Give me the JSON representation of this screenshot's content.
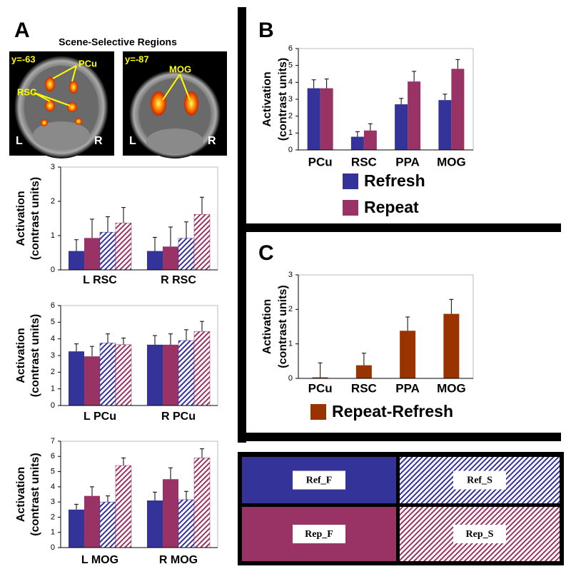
{
  "panel_labels": [
    "A",
    "B",
    "C"
  ],
  "title": "Scene-Selective Regions",
  "brain_images": [
    {
      "slice": "y=-63",
      "regions": [
        "PCu",
        "RSC"
      ],
      "left": "L",
      "right": "R"
    },
    {
      "slice": "y=-87",
      "regions": [
        "MOG"
      ],
      "left": "L",
      "right": "R"
    }
  ],
  "legend_box": [
    {
      "label": "Ref_F",
      "color": "#333399",
      "hatch": false
    },
    {
      "label": "Ref_S",
      "color": "#333399",
      "hatch": true
    },
    {
      "label": "Rep_F",
      "color": "#993366",
      "hatch": false
    },
    {
      "label": "Rep_S",
      "color": "#993366",
      "hatch": true
    }
  ],
  "chart_data": [
    {
      "type": "bar",
      "ylabel": [
        "Activation",
        "(contrast units)"
      ],
      "categories": [
        "L RSC",
        "R RSC"
      ],
      "ylim": [
        0,
        3
      ],
      "yticks": [
        0,
        1,
        2,
        3
      ],
      "series": [
        {
          "color": "#333399",
          "hatch": false,
          "values": [
            0.55,
            0.55
          ],
          "errors": [
            0.33,
            0.4
          ]
        },
        {
          "color": "#993366",
          "hatch": false,
          "values": [
            0.93,
            0.68
          ],
          "errors": [
            0.55,
            0.57
          ]
        },
        {
          "color": "#333399",
          "hatch": true,
          "values": [
            1.1,
            0.92
          ],
          "errors": [
            0.45,
            0.48
          ]
        },
        {
          "color": "#993366",
          "hatch": true,
          "values": [
            1.37,
            1.62
          ],
          "errors": [
            0.45,
            0.5
          ]
        }
      ]
    },
    {
      "type": "bar",
      "ylabel": [
        "Activation",
        "(contrast units)"
      ],
      "categories": [
        "L PCu",
        "R PCu"
      ],
      "ylim": [
        0,
        6
      ],
      "yticks": [
        0,
        1,
        2,
        3,
        4,
        5,
        6
      ],
      "series": [
        {
          "color": "#333399",
          "hatch": false,
          "values": [
            3.25,
            3.65
          ],
          "errors": [
            0.45,
            0.55
          ]
        },
        {
          "color": "#993366",
          "hatch": false,
          "values": [
            2.95,
            3.65
          ],
          "errors": [
            0.6,
            0.65
          ]
        },
        {
          "color": "#333399",
          "hatch": true,
          "values": [
            3.75,
            3.9
          ],
          "errors": [
            0.55,
            0.65
          ]
        },
        {
          "color": "#993366",
          "hatch": true,
          "values": [
            3.65,
            4.45
          ],
          "errors": [
            0.4,
            0.6
          ]
        }
      ]
    },
    {
      "type": "bar",
      "ylabel": [
        "Activation",
        "(contrast units)"
      ],
      "categories": [
        "L MOG",
        "R MOG"
      ],
      "ylim": [
        0,
        7
      ],
      "yticks": [
        0,
        1,
        2,
        3,
        4,
        5,
        6,
        7
      ],
      "series": [
        {
          "color": "#333399",
          "hatch": false,
          "values": [
            2.5,
            3.1
          ],
          "errors": [
            0.35,
            0.55
          ]
        },
        {
          "color": "#993366",
          "hatch": false,
          "values": [
            3.4,
            4.5
          ],
          "errors": [
            0.6,
            0.75
          ]
        },
        {
          "color": "#333399",
          "hatch": true,
          "values": [
            3.0,
            3.15
          ],
          "errors": [
            0.4,
            0.55
          ]
        },
        {
          "color": "#993366",
          "hatch": true,
          "values": [
            5.4,
            5.9
          ],
          "errors": [
            0.5,
            0.6
          ]
        }
      ]
    },
    {
      "type": "bar",
      "ylabel": [
        "Activation",
        "(contrast units)"
      ],
      "categories": [
        "PCu",
        "RSC",
        "PPA",
        "MOG"
      ],
      "ylim": [
        0,
        6
      ],
      "yticks": [
        0,
        1,
        2,
        3,
        4,
        5,
        6
      ],
      "series": [
        {
          "name": "Refresh",
          "color": "#333399",
          "hatch": false,
          "values": [
            3.65,
            0.78,
            2.7,
            2.95
          ],
          "errors": [
            0.5,
            0.3,
            0.35,
            0.35
          ]
        },
        {
          "name": "Repeat",
          "color": "#993366",
          "hatch": false,
          "values": [
            3.65,
            1.15,
            4.05,
            4.8
          ],
          "errors": [
            0.55,
            0.4,
            0.6,
            0.55
          ]
        }
      ]
    },
    {
      "type": "bar",
      "ylabel": [
        "Activation",
        "(contrast units)"
      ],
      "categories": [
        "PCu",
        "RSC",
        "PPA",
        "MOG"
      ],
      "ylim": [
        0,
        3
      ],
      "yticks": [
        0,
        1,
        2,
        3
      ],
      "series": [
        {
          "name": "Repeat-Refresh",
          "color": "#993300",
          "hatch": false,
          "values": [
            0.03,
            0.38,
            1.38,
            1.87
          ],
          "errors": [
            0.42,
            0.35,
            0.4,
            0.42
          ]
        }
      ]
    }
  ]
}
